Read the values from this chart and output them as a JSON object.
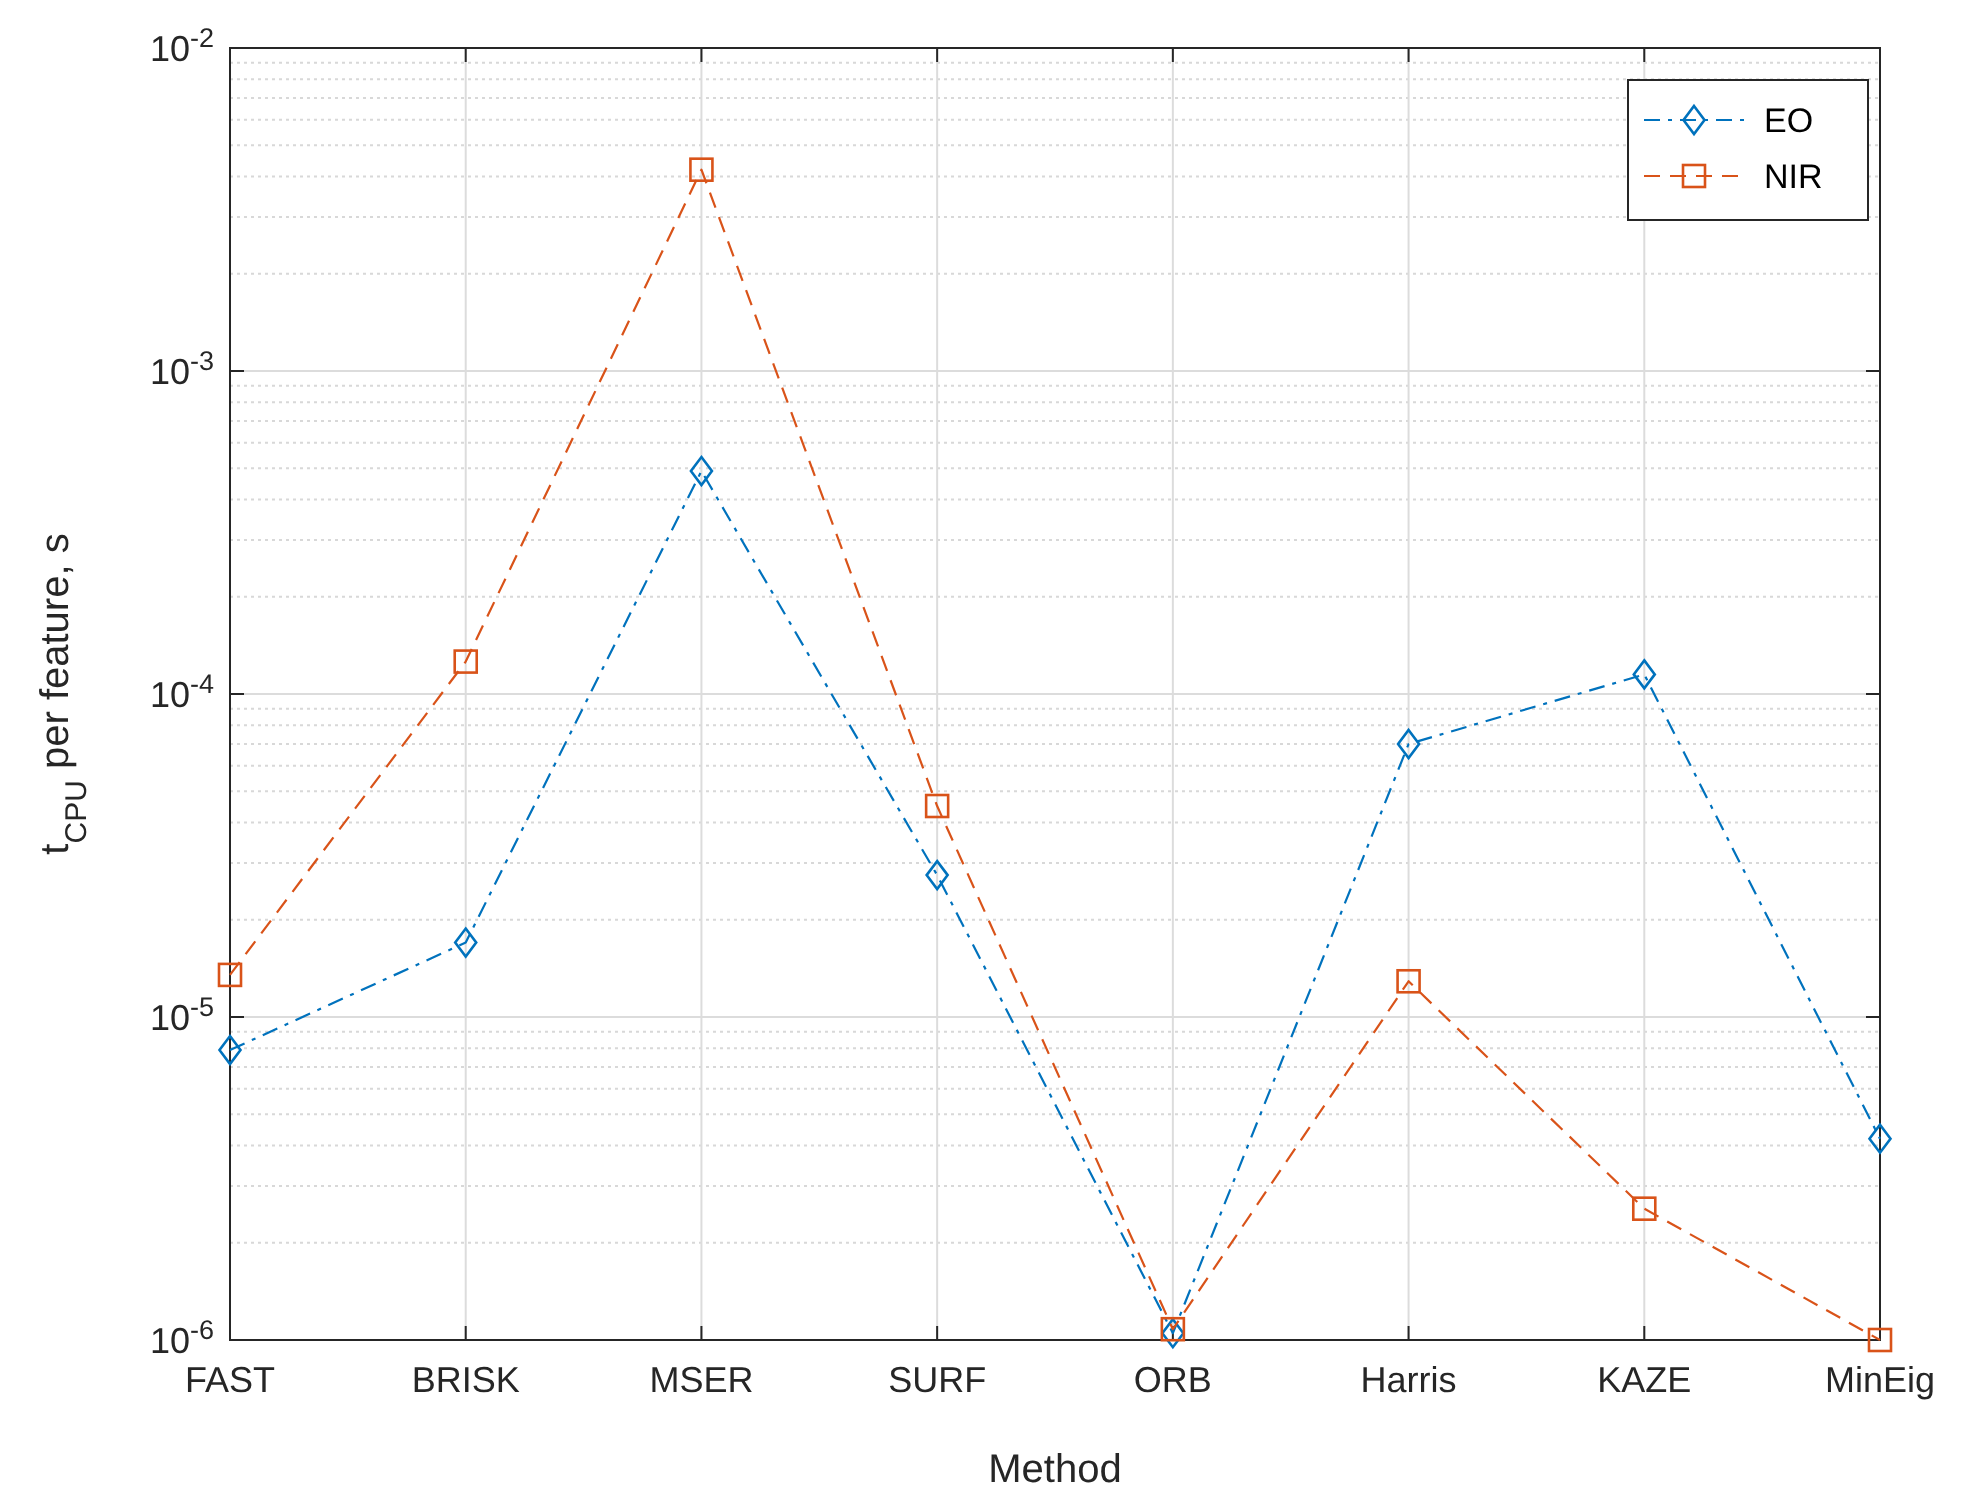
{
  "chart_data": {
    "type": "line",
    "xlabel": "Method",
    "ylabel": "t$_{CPU}$ per feature, s",
    "categories": [
      "FAST",
      "BRISK",
      "MSER",
      "SURF",
      "ORB",
      "Harris",
      "KAZE",
      "MinEig"
    ],
    "series": [
      {
        "name": "EO",
        "color": "#0072bd",
        "marker": "diamond",
        "line_style": "dashdot",
        "values": [
          7.9e-06,
          1.7e-05,
          0.00049,
          2.75e-05,
          1.05e-06,
          7e-05,
          0.000115,
          4.2e-06
        ]
      },
      {
        "name": "NIR",
        "color": "#d95319",
        "marker": "square",
        "line_style": "dashed",
        "values": [
          1.35e-05,
          0.000126,
          0.0042,
          4.5e-05,
          1.08e-06,
          1.29e-05,
          2.55e-06,
          1e-06
        ]
      }
    ],
    "log": "y",
    "ylim": [
      1e-06,
      0.01
    ],
    "yticks": [
      {
        "value": 1e-06,
        "label": "10$^{-6}$"
      },
      {
        "value": 1e-05,
        "label": "10$^{-5}$"
      },
      {
        "value": 0.0001,
        "label": "10$^{-4}$"
      },
      {
        "value": 0.001,
        "label": "10$^{-3}$"
      },
      {
        "value": 0.01,
        "label": "10$^{-2}$"
      }
    ],
    "grid": true,
    "legend": "top right"
  }
}
